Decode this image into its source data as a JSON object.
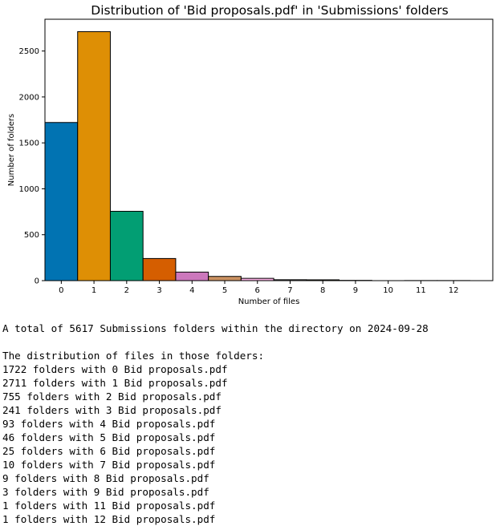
{
  "chart_data": {
    "type": "bar",
    "title": "Distribution of 'Bid proposals.pdf' in 'Submissions' folders",
    "xlabel": "Number of files",
    "ylabel": "Number of folders",
    "categories": [
      0,
      1,
      2,
      3,
      4,
      5,
      6,
      7,
      8,
      9,
      10,
      11,
      12
    ],
    "values": [
      1722,
      2711,
      755,
      241,
      93,
      46,
      25,
      10,
      9,
      3,
      0,
      1,
      1
    ],
    "colors": [
      "#0173b2",
      "#de8f05",
      "#029e73",
      "#d55e00",
      "#cc78bc",
      "#ca9161",
      "#fbafe4",
      "#949494",
      "#ece133",
      "#56b4e9",
      "#0173b2",
      "#de8f05",
      "#029e73"
    ],
    "yticks": [
      0,
      500,
      1000,
      1500,
      2000,
      2500
    ],
    "xticks": [
      "0",
      "1",
      "2",
      "3",
      "4",
      "5",
      "6",
      "7",
      "8",
      "9",
      "10",
      "11",
      "12"
    ],
    "xlim": [
      -0.5,
      13.2
    ],
    "ylim": [
      0,
      2846
    ],
    "grid": false
  },
  "output": {
    "summary": "A total of 5617 Submissions folders within the directory on 2024-09-28",
    "dist_title": "The distribution of files in those folders:",
    "lines": [
      "1722 folders with 0 Bid proposals.pdf",
      "2711 folders with 1 Bid proposals.pdf",
      "755 folders with 2 Bid proposals.pdf",
      "241 folders with 3 Bid proposals.pdf",
      "93 folders with 4 Bid proposals.pdf",
      "46 folders with 5 Bid proposals.pdf",
      "25 folders with 6 Bid proposals.pdf",
      "10 folders with 7 Bid proposals.pdf",
      "9 folders with 8 Bid proposals.pdf",
      "3 folders with 9 Bid proposals.pdf",
      "1 folders with 11 Bid proposals.pdf",
      "1 folders with 12 Bid proposals.pdf"
    ]
  }
}
